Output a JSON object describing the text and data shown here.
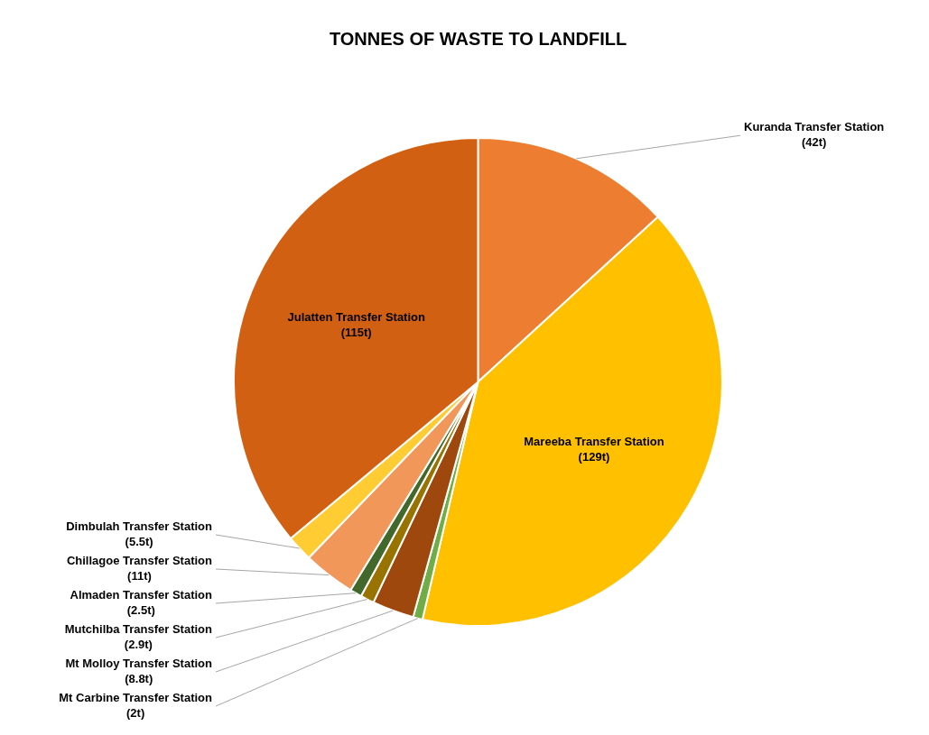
{
  "chart_data": {
    "type": "pie",
    "title": "TONNES OF WASTE TO LANDFILL",
    "categories": [
      "Kuranda Transfer Station",
      "Mareeba Transfer Station",
      "Mt Carbine Transfer Station",
      "Mt Molloy Transfer Station",
      "Mutchilba Transfer Station",
      "Almaden Transfer Station",
      "Chillagoe Transfer Station",
      "Dimbulah Transfer Station",
      "Julatten Transfer Station"
    ],
    "values": [
      42,
      129,
      2,
      8.8,
      2.9,
      2.5,
      11,
      5.5,
      115
    ],
    "value_labels": [
      "(42t)",
      "(129t)",
      "(2t)",
      "(8.8t)",
      "(2.9t)",
      "(2.5t)",
      "(11t)",
      "(5.5t)",
      "(115t)"
    ],
    "colors": [
      "#ed7d31",
      "#ffc000",
      "#70ad47",
      "#9e480e",
      "#997300",
      "#43682b",
      "#f1975a",
      "#ffcd33",
      "#d26012"
    ],
    "legend": false
  }
}
